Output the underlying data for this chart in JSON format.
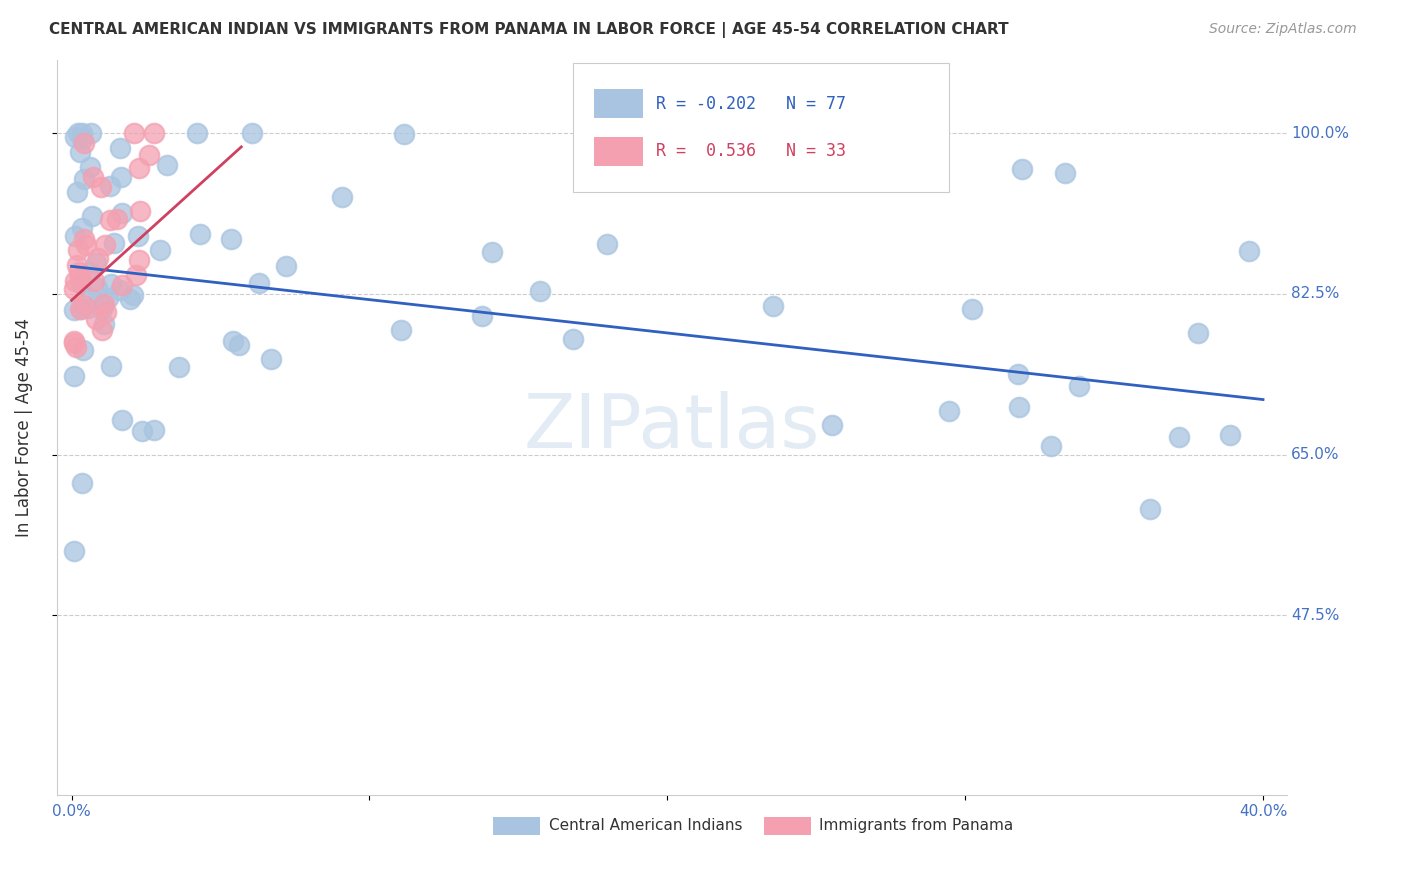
{
  "title": "CENTRAL AMERICAN INDIAN VS IMMIGRANTS FROM PANAMA IN LABOR FORCE | AGE 45-54 CORRELATION CHART",
  "source": "Source: ZipAtlas.com",
  "ylabel": "In Labor Force | Age 45-54",
  "ytick_vals": [
    0.475,
    0.65,
    0.825,
    1.0
  ],
  "ytick_labels": [
    "47.5%",
    "65.0%",
    "82.5%",
    "100.0%"
  ],
  "xlim": [
    0.0,
    0.4
  ],
  "ylim": [
    0.28,
    1.08
  ],
  "blue_R": -0.202,
  "blue_N": 77,
  "pink_R": 0.536,
  "pink_N": 33,
  "blue_color": "#a8c4e0",
  "pink_color": "#f4a0b0",
  "blue_line_color": "#3060c0",
  "pink_line_color": "#d04060",
  "legend_blue_label": "Central American Indians",
  "legend_pink_label": "Immigrants from Panama",
  "watermark": "ZIPatlas",
  "blue_trend": [
    0.0,
    0.4,
    0.855,
    0.71
  ],
  "pink_trend": [
    0.0,
    0.057,
    0.818,
    0.985
  ]
}
